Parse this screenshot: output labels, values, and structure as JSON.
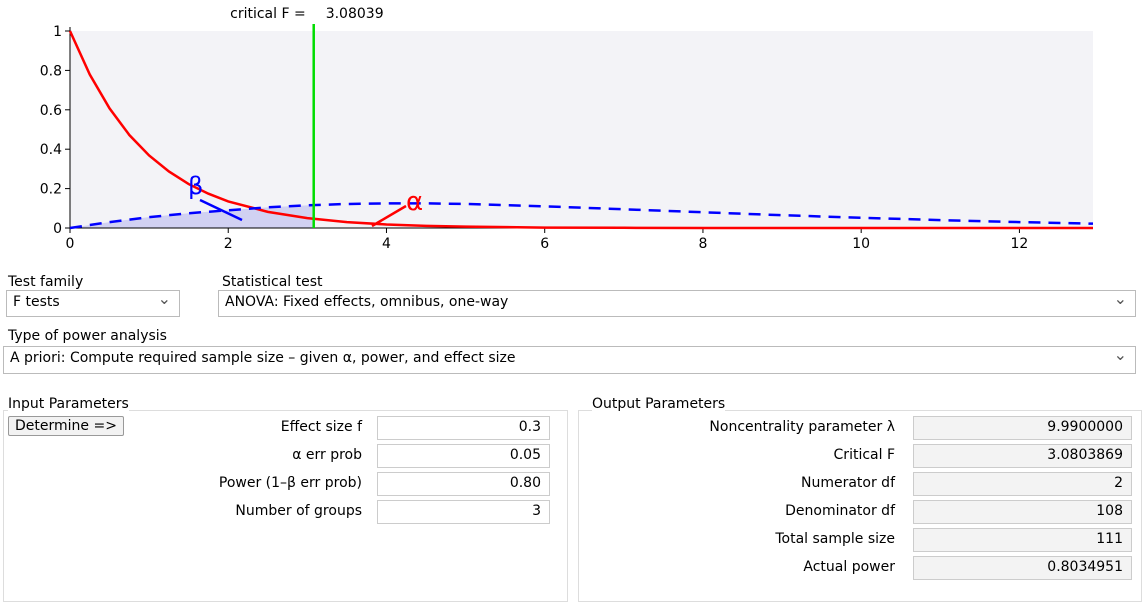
{
  "chart_data": {
    "type": "line",
    "critical_label": "critical F =",
    "critical_value": 3.08039,
    "annotations": [
      "β",
      "α"
    ],
    "xlim": [
      0,
      12.93
    ],
    "xticks": [
      0,
      2,
      4,
      6,
      8,
      10,
      12
    ],
    "ylim": [
      0,
      1
    ],
    "yticks": [
      0,
      0.2,
      0.4,
      0.6,
      0.8,
      1
    ],
    "series": [
      {
        "color": "#ff0000",
        "dash": false,
        "x": [
          0,
          0.25,
          0.5,
          0.75,
          1,
          1.25,
          1.5,
          1.75,
          2,
          2.5,
          3,
          3.5,
          4,
          4.5,
          5,
          6,
          7,
          8,
          10,
          12.93
        ],
        "values": [
          1,
          0.779,
          0.607,
          0.472,
          0.368,
          0.287,
          0.223,
          0.174,
          0.135,
          0.082,
          0.05,
          0.03,
          0.018,
          0.011,
          0.007,
          0.002,
          0.001,
          0,
          0,
          0
        ]
      },
      {
        "color": "#0000ff",
        "dash": true,
        "x": [
          0,
          0.5,
          1,
          1.5,
          2,
          2.5,
          3,
          3.5,
          4,
          4.5,
          5,
          6,
          7,
          8,
          9,
          10,
          11,
          12,
          12.93
        ],
        "values": [
          0,
          0.03,
          0.055,
          0.075,
          0.09,
          0.105,
          0.115,
          0.122,
          0.125,
          0.125,
          0.122,
          0.11,
          0.095,
          0.08,
          0.065,
          0.052,
          0.04,
          0.03,
          0.022
        ]
      }
    ]
  },
  "test_family": {
    "label": "Test family",
    "value": "F tests"
  },
  "statistical_test": {
    "label": "Statistical test",
    "value": "ANOVA: Fixed effects, omnibus, one-way"
  },
  "power_analysis": {
    "label": "Type of power analysis",
    "value": "A priori: Compute required sample size – given α, power, and effect size"
  },
  "input": {
    "title": "Input Parameters",
    "button": "Determine =>",
    "fields": [
      {
        "label": "Effect size f",
        "value": "0.3"
      },
      {
        "label": "α err prob",
        "value": "0.05"
      },
      {
        "label": "Power (1–β err prob)",
        "value": "0.80"
      },
      {
        "label": "Number of groups",
        "value": "3"
      }
    ]
  },
  "output": {
    "title": "Output Parameters",
    "fields": [
      {
        "label": "Noncentrality parameter λ",
        "value": "9.9900000"
      },
      {
        "label": "Critical F",
        "value": "3.0803869"
      },
      {
        "label": "Numerator df",
        "value": "2"
      },
      {
        "label": "Denominator df",
        "value": "108"
      },
      {
        "label": "Total sample size",
        "value": "111"
      },
      {
        "label": "Actual power",
        "value": "0.8034951"
      }
    ]
  }
}
